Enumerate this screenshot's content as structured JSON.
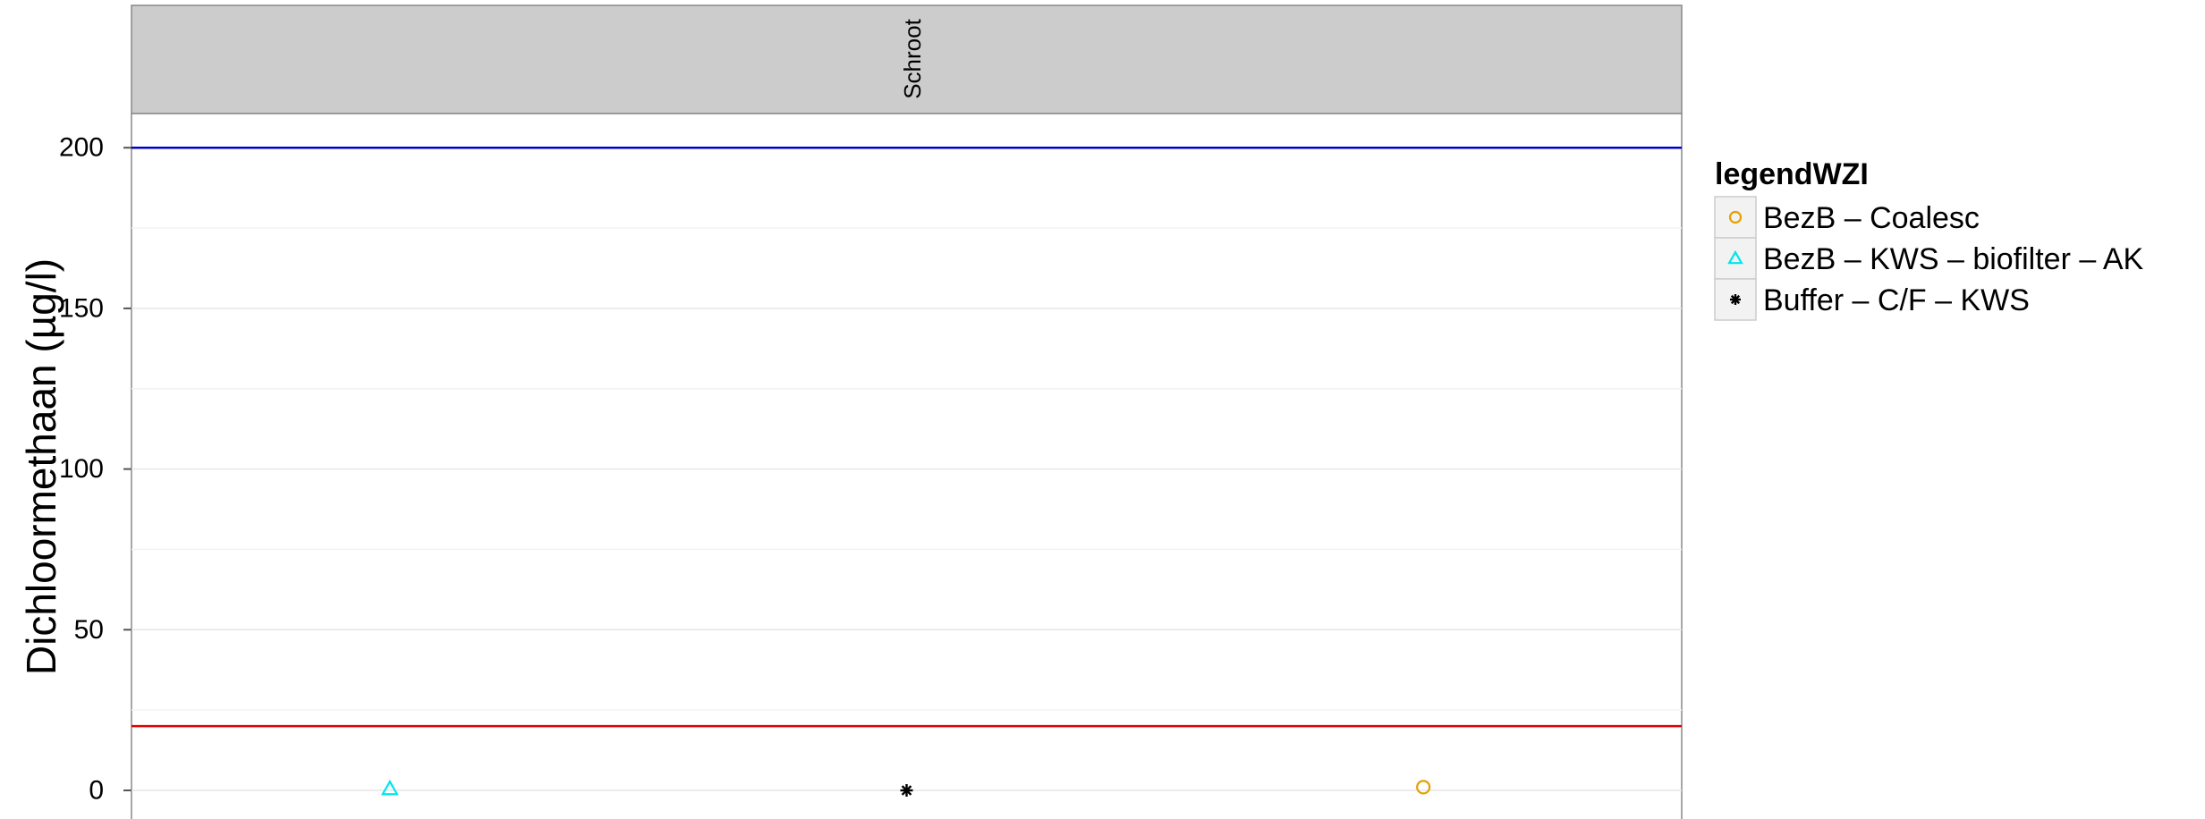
{
  "chart_data": {
    "type": "scatter",
    "facet_label": "Schroot",
    "ylabel": "Dichloormethaan (µg/l)",
    "ylim": [
      -10,
      210
    ],
    "y_ticks": [
      0,
      50,
      100,
      150,
      200
    ],
    "grid": true,
    "legend_placement": "right",
    "legend_title": "legendWZI",
    "categories": [
      "BezB – KWS – biofilter – AK",
      "Buffer – C/F – KWS",
      "BezB – Coalesc"
    ],
    "series": [
      {
        "name": "BezB – Coalesc",
        "shape": "circle",
        "color": "#E69F00",
        "x": "BezB – Coalesc",
        "y": 1
      },
      {
        "name": "BezB – KWS – biofilter – AK",
        "shape": "triangle",
        "color": "#00E5EE",
        "x": "BezB – KWS – biofilter – AK",
        "y": 0.5
      },
      {
        "name": "Buffer – C/F – KWS",
        "shape": "asterisk",
        "color": "#000000",
        "x": "Buffer – C/F – KWS",
        "y": 0
      }
    ],
    "reference_lines": [
      {
        "y": 200,
        "color": "#0000CC"
      },
      {
        "y": 20,
        "color": "#E00000"
      }
    ]
  }
}
